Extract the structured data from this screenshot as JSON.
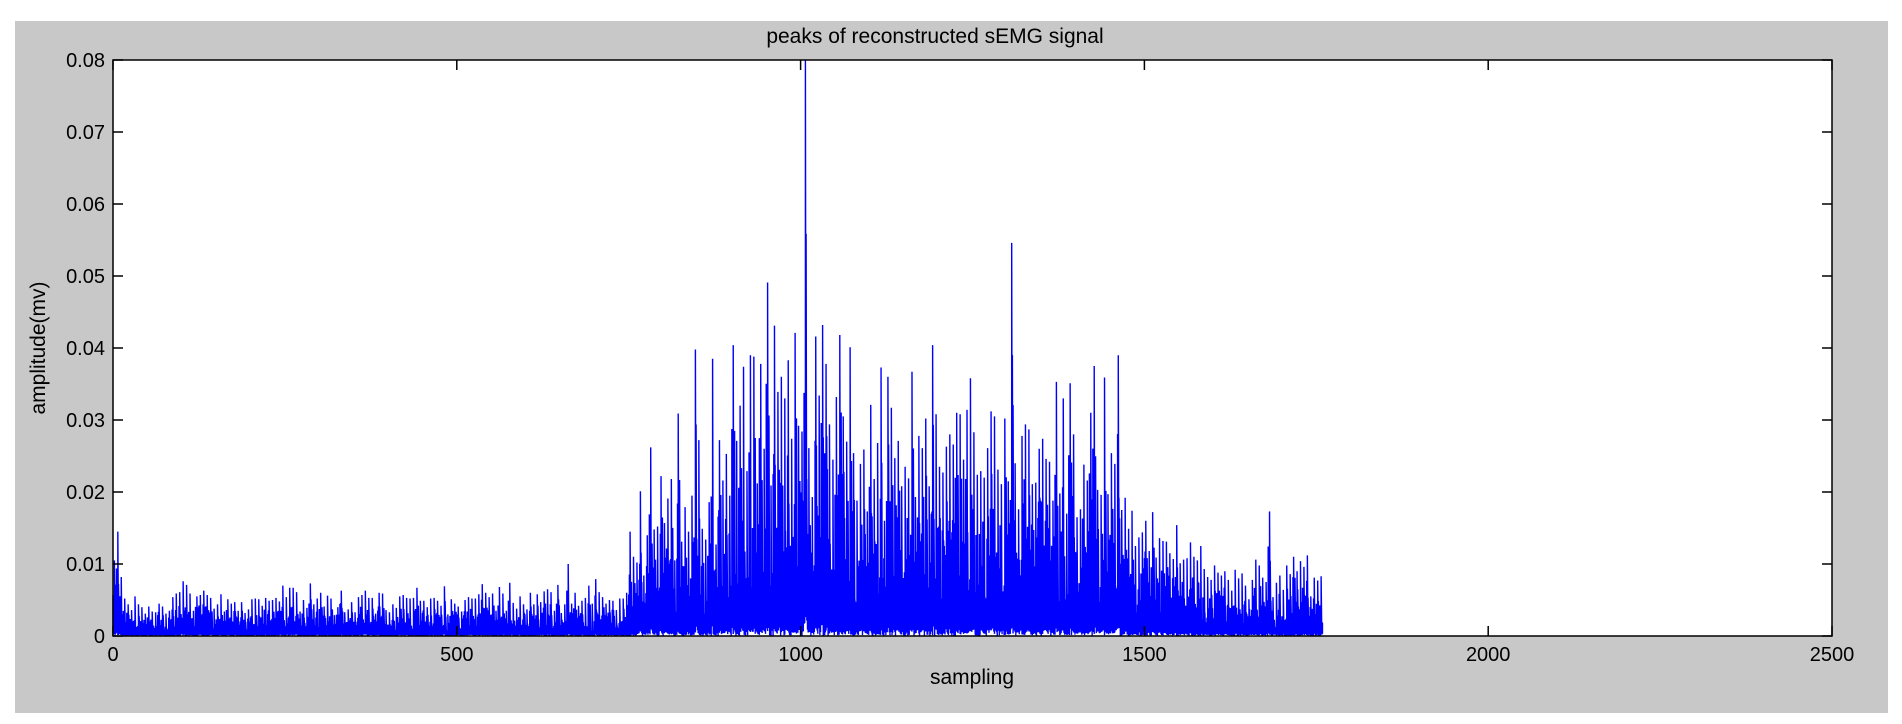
{
  "figure": {
    "background": "#c8c8c8",
    "axes_background": "#ffffff"
  },
  "chart_data": {
    "type": "line",
    "title": "peaks of reconstructed sEMG signal",
    "xlabel": "sampling",
    "ylabel": "amplitude(mv)",
    "xlim": [
      0,
      2500
    ],
    "ylim": [
      0,
      0.08
    ],
    "xticks": [
      0,
      500,
      1000,
      1500,
      2000,
      2500
    ],
    "xtick_labels": [
      "0",
      "500",
      "1000",
      "1500",
      "2000",
      "2500"
    ],
    "yticks": [
      0,
      0.01,
      0.02,
      0.03,
      0.04,
      0.05,
      0.06,
      0.07,
      0.08
    ],
    "ytick_labels": [
      "0",
      "0.01",
      "0.02",
      "0.03",
      "0.04",
      "0.05",
      "0.06",
      "0.07",
      "0.08"
    ],
    "grid": false,
    "series": [
      {
        "color": "#0000ff",
        "x_start": 0,
        "x_step": 5,
        "y": [
          0.0105,
          0.0145,
          0.0082,
          0.0052,
          0.0044,
          0.0036,
          0.0055,
          0.0044,
          0.004,
          0.0031,
          0.0041,
          0.0034,
          0.0033,
          0.0045,
          0.0041,
          0.0031,
          0.0035,
          0.0054,
          0.0059,
          0.0061,
          0.0076,
          0.0071,
          0.0059,
          0.0035,
          0.0055,
          0.0057,
          0.0063,
          0.0057,
          0.0053,
          0.0038,
          0.0044,
          0.0058,
          0.0034,
          0.0051,
          0.0045,
          0.0047,
          0.0035,
          0.0047,
          0.0032,
          0.0037,
          0.0051,
          0.0052,
          0.0051,
          0.0042,
          0.0053,
          0.0049,
          0.005,
          0.0053,
          0.0048,
          0.007,
          0.0054,
          0.0067,
          0.0067,
          0.0061,
          0.0034,
          0.005,
          0.0039,
          0.0073,
          0.0044,
          0.0052,
          0.006,
          0.0041,
          0.0056,
          0.0052,
          0.0029,
          0.004,
          0.0063,
          0.0033,
          0.0037,
          0.0047,
          0.0033,
          0.0054,
          0.0057,
          0.0063,
          0.0053,
          0.0053,
          0.0031,
          0.006,
          0.0059,
          0.0036,
          0.0033,
          0.0044,
          0.0039,
          0.0055,
          0.0057,
          0.0053,
          0.0052,
          0.0053,
          0.0067,
          0.0049,
          0.0049,
          0.004,
          0.0052,
          0.0053,
          0.0049,
          0.0042,
          0.0069,
          0.003,
          0.0051,
          0.0045,
          0.0041,
          0.0034,
          0.005,
          0.0054,
          0.0052,
          0.0052,
          0.0058,
          0.0072,
          0.006,
          0.0054,
          0.0059,
          0.0035,
          0.0068,
          0.0059,
          0.0035,
          0.0074,
          0.0046,
          0.0038,
          0.0055,
          0.0044,
          0.0037,
          0.006,
          0.0044,
          0.0058,
          0.0047,
          0.0062,
          0.0065,
          0.0061,
          0.0035,
          0.0071,
          0.0032,
          0.0044,
          0.01,
          0.0045,
          0.006,
          0.0042,
          0.0049,
          0.0053,
          0.007,
          0.0045,
          0.0079,
          0.0061,
          0.0054,
          0.0045,
          0.005,
          0.0049,
          0.0036,
          0.0052,
          0.0052,
          0.006,
          0.0145,
          0.011,
          0.0102,
          0.0201,
          0.0084,
          0.014,
          0.0262,
          0.0148,
          0.0152,
          0.0222,
          0.0157,
          0.0191,
          0.0218,
          0.0105,
          0.0309,
          0.0131,
          0.0179,
          0.0145,
          0.0195,
          0.0398,
          0.0272,
          0.0149,
          0.0134,
          0.0186,
          0.0385,
          0.0127,
          0.0272,
          0.0216,
          0.0253,
          0.0195,
          0.0404,
          0.0271,
          0.032,
          0.0374,
          0.0229,
          0.039,
          0.0388,
          0.0212,
          0.0378,
          0.026,
          0.0491,
          0.0209,
          0.0431,
          0.0339,
          0.036,
          0.033,
          0.0383,
          0.0274,
          0.0421,
          0.0292,
          0.0284,
          0.08,
          0.0261,
          0.0193,
          0.0416,
          0.0334,
          0.0432,
          0.0378,
          0.0294,
          0.0245,
          0.0332,
          0.0418,
          0.0305,
          0.027,
          0.0401,
          0.0254,
          0.0188,
          0.0239,
          0.0259,
          0.0173,
          0.0321,
          0.0218,
          0.0268,
          0.0373,
          0.016,
          0.036,
          0.0317,
          0.0247,
          0.0271,
          0.0208,
          0.0235,
          0.0219,
          0.0367,
          0.0193,
          0.0278,
          0.0261,
          0.0302,
          0.0208,
          0.0404,
          0.0308,
          0.0235,
          0.0227,
          0.0263,
          0.028,
          0.0266,
          0.031,
          0.0308,
          0.0245,
          0.0314,
          0.0358,
          0.0283,
          0.0224,
          0.0229,
          0.022,
          0.0261,
          0.0312,
          0.0305,
          0.0231,
          0.0211,
          0.0302,
          0.0215,
          0.0546,
          0.024,
          0.0176,
          0.0278,
          0.0294,
          0.0287,
          0.0211,
          0.0213,
          0.026,
          0.0274,
          0.0246,
          0.0242,
          0.0188,
          0.0353,
          0.0198,
          0.033,
          0.017,
          0.0351,
          0.028,
          0.0165,
          0.0176,
          0.0238,
          0.0216,
          0.031,
          0.0375,
          0.0203,
          0.0196,
          0.0359,
          0.0197,
          0.0254,
          0.0239,
          0.039,
          0.0175,
          0.0192,
          0.0149,
          0.0174,
          0.0125,
          0.0137,
          0.0144,
          0.016,
          0.0118,
          0.0172,
          0.0109,
          0.0136,
          0.0132,
          0.0131,
          0.0115,
          0.0107,
          0.0154,
          0.0101,
          0.0106,
          0.0108,
          0.013,
          0.011,
          0.0105,
          0.0125,
          0.0093,
          0.0082,
          0.0078,
          0.0098,
          0.0088,
          0.0084,
          0.009,
          0.0078,
          0.0063,
          0.0092,
          0.008,
          0.0087,
          0.007,
          0.0051,
          0.0078,
          0.0106,
          0.0098,
          0.0081,
          0.0075,
          0.0173,
          0.0054,
          0.0074,
          0.0084,
          0.0064,
          0.0098,
          0.0086,
          0.011,
          0.009,
          0.0104,
          0.0096,
          0.0112,
          0.0055,
          0.0081,
          0.0077,
          0.0083
        ]
      }
    ]
  }
}
